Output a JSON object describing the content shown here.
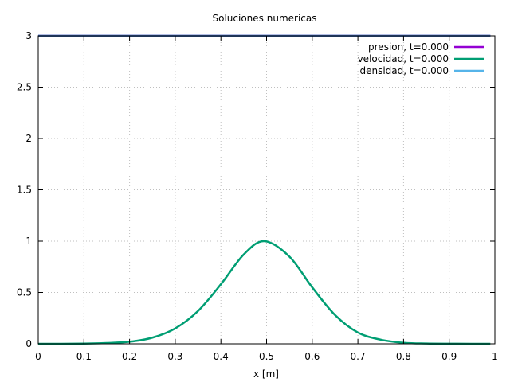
{
  "chart_data": {
    "type": "line",
    "title": "Soluciones numericas",
    "xlabel": "x [m]",
    "ylabel": "",
    "xlim": [
      0,
      1
    ],
    "ylim": [
      0,
      3
    ],
    "x_ticks": [
      "0",
      "0.1",
      "0.2",
      "0.3",
      "0.4",
      "0.5",
      "0.6",
      "0.7",
      "0.8",
      "0.9",
      "1"
    ],
    "y_ticks": [
      "0",
      "0.5",
      "1",
      "1.5",
      "2",
      "2.5",
      "3"
    ],
    "grid": true,
    "legend_position": "top-right",
    "series": [
      {
        "name": "presion, t=0.000",
        "color": "#9400d3",
        "x": [
          0,
          0.99
        ],
        "y": [
          3,
          3
        ]
      },
      {
        "name": "velocidad, t=0.000",
        "color": "#009e73",
        "x": [
          0,
          0.05,
          0.1,
          0.15,
          0.2,
          0.25,
          0.3,
          0.35,
          0.4,
          0.45,
          0.495,
          0.55,
          0.6,
          0.65,
          0.7,
          0.75,
          0.8,
          0.85,
          0.9,
          0.95,
          0.99
        ],
        "y": [
          0.0,
          0.0,
          0.002,
          0.008,
          0.02,
          0.06,
          0.15,
          0.32,
          0.58,
          0.87,
          1.0,
          0.85,
          0.55,
          0.28,
          0.11,
          0.04,
          0.01,
          0.003,
          0.001,
          0.0,
          0.0
        ]
      },
      {
        "name": "densidad, t=0.000",
        "color": "#56b4e9",
        "x": [
          0,
          0.99
        ],
        "y": [
          3,
          3
        ]
      }
    ]
  }
}
